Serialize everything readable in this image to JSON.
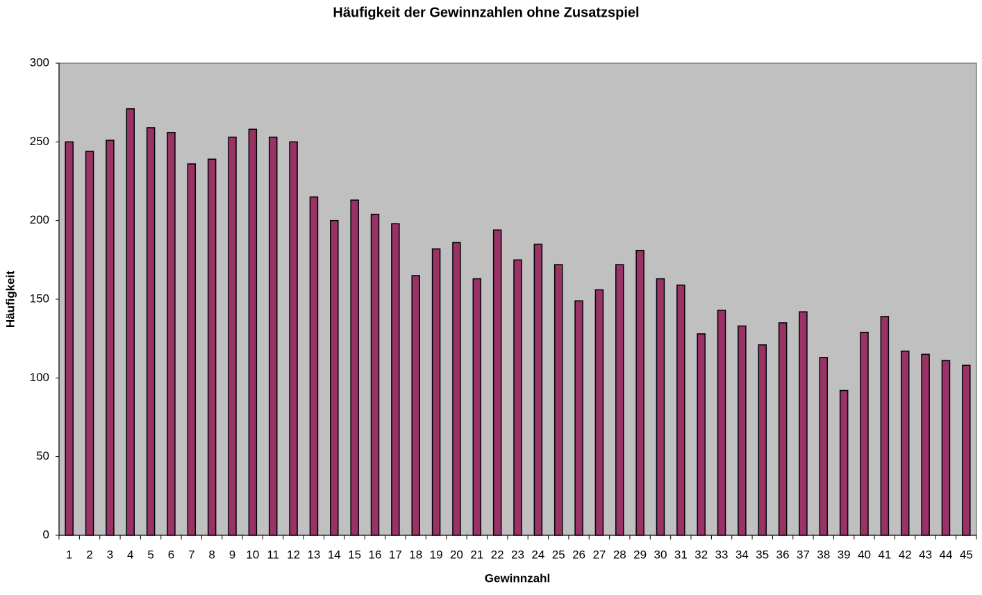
{
  "chart_data": {
    "type": "bar",
    "title": "Häufigkeit der Gewinnzahlen ohne Zusatzspiel",
    "x_label": "Gewinnzahl",
    "y_label": "Häufigkeit",
    "categories": [
      "1",
      "2",
      "3",
      "4",
      "5",
      "6",
      "7",
      "8",
      "9",
      "10",
      "11",
      "12",
      "13",
      "14",
      "15",
      "16",
      "17",
      "18",
      "19",
      "20",
      "21",
      "22",
      "23",
      "24",
      "25",
      "26",
      "27",
      "28",
      "29",
      "30",
      "31",
      "32",
      "33",
      "34",
      "35",
      "36",
      "37",
      "38",
      "39",
      "40",
      "41",
      "42",
      "43",
      "44",
      "45"
    ],
    "values": [
      250,
      244,
      251,
      271,
      259,
      256,
      236,
      239,
      253,
      258,
      253,
      250,
      215,
      200,
      213,
      204,
      198,
      165,
      182,
      186,
      163,
      194,
      175,
      185,
      172,
      149,
      156,
      172,
      181,
      163,
      159,
      128,
      143,
      133,
      121,
      135,
      142,
      113,
      92,
      129,
      139,
      117,
      115,
      111,
      108
    ],
    "color": "#993366",
    "ylim": [
      0,
      300
    ],
    "yticks": [
      0,
      50,
      100,
      150,
      200,
      250,
      300
    ]
  }
}
